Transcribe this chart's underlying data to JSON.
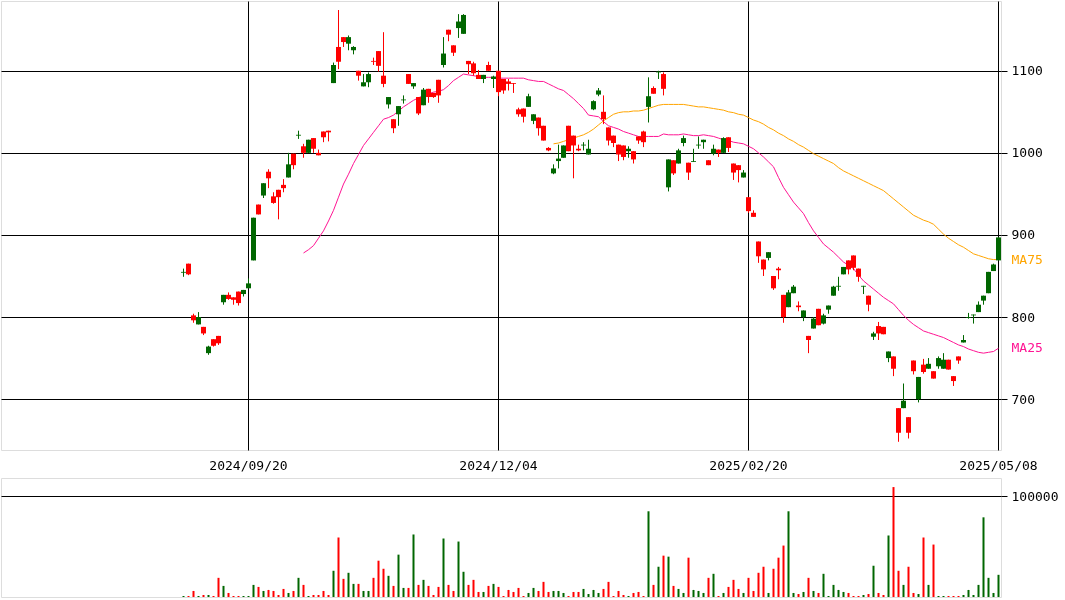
{
  "chart_data": [
    {
      "type": "candlestick",
      "categories": [
        null,
        null,
        null,
        null,
        null,
        null,
        null,
        null,
        null,
        null,
        null,
        null,
        null,
        null,
        null,
        null,
        null,
        null,
        null,
        null,
        null,
        null,
        null,
        null,
        null,
        null,
        null,
        null,
        null,
        null,
        null,
        null,
        null,
        null,
        null,
        null,
        null,
        null,
        null,
        null,
        null,
        null,
        null,
        null,
        null,
        null,
        null,
        null,
        null,
        "2024/09/20",
        null,
        null,
        null,
        null,
        null,
        null,
        null,
        null,
        null,
        null,
        null,
        null,
        null,
        null,
        null,
        null,
        null,
        null,
        null,
        null,
        null,
        null,
        null,
        null,
        null,
        null,
        null,
        null,
        null,
        null,
        null,
        null,
        null,
        null,
        null,
        null,
        null,
        null,
        null,
        null,
        null,
        null,
        null,
        null,
        null,
        null,
        null,
        null,
        null,
        "2024/12/04",
        null,
        null,
        null,
        null,
        null,
        null,
        null,
        null,
        null,
        null,
        null,
        null,
        null,
        null,
        null,
        null,
        null,
        null,
        null,
        null,
        null,
        null,
        null,
        null,
        null,
        null,
        null,
        null,
        null,
        null,
        null,
        null,
        null,
        null,
        null,
        null,
        null,
        null,
        null,
        null,
        null,
        null,
        null,
        null,
        null,
        null,
        null,
        null,
        null,
        "2025/02/20",
        null,
        null,
        null,
        null,
        null,
        null,
        null,
        null,
        null,
        null,
        null,
        null,
        null,
        null,
        null,
        null,
        null,
        null,
        null,
        null,
        null,
        null,
        null,
        null,
        null,
        null,
        null,
        null,
        null,
        null,
        null,
        null,
        null,
        null,
        null,
        null,
        null,
        null,
        null,
        null,
        null,
        null,
        null,
        null,
        null,
        null,
        null,
        null,
        null,
        "2025/05/08"
      ],
      "ohlc": [
        null,
        null,
        null,
        null,
        null,
        null,
        null,
        null,
        null,
        null,
        null,
        null,
        null,
        null,
        null,
        null,
        null,
        null,
        null,
        null,
        null,
        null,
        null,
        null,
        null,
        null,
        null,
        null,
        null,
        null,
        null,
        null,
        null,
        null,
        null,
        null,
        [
          854,
          859,
          849,
          855
        ],
        [
          865,
          865,
          851,
          852
        ],
        [
          802,
          804,
          793,
          796
        ],
        [
          791,
          806,
          791,
          800
        ],
        [
          788,
          788,
          778,
          780
        ],
        [
          756,
          765,
          754,
          764
        ],
        [
          773,
          773,
          764,
          765
        ],
        [
          777,
          777,
          766,
          768
        ],
        [
          818,
          827,
          815,
          827
        ],
        [
          827,
          830,
          821,
          822
        ],
        [
          824,
          824,
          815,
          821
        ],
        [
          831,
          831,
          814,
          817
        ],
        [
          828,
          833,
          825,
          833
        ],
        [
          835,
          847,
          835,
          841
        ],
        [
          869,
          921,
          869,
          921
        ],
        [
          937,
          937,
          925,
          925
        ],
        [
          948,
          963,
          945,
          963
        ],
        [
          977,
          980,
          957,
          969
        ],
        [
          947,
          952,
          938,
          939
        ],
        [
          955,
          955,
          919,
          946
        ],
        [
          961,
          968,
          952,
          957
        ],
        [
          970,
          1000,
          970,
          986
        ],
        [
          999,
          999,
          980,
          985
        ],
        [
          1021,
          1027,
          1017,
          1022
        ],
        [
          1008,
          1011,
          994,
          1000
        ],
        [
          1000,
          1016,
          1000,
          1016
        ],
        [
          1018,
          1018,
          1000,
          1005
        ],
        [
          1000,
          1004,
          997,
          997
        ],
        [
          1026,
          1026,
          1013,
          1019
        ],
        [
          1027,
          1027,
          1014,
          1025
        ],
        [
          1085,
          1110,
          1085,
          1107
        ],
        [
          1129,
          1174,
          1102,
          1111
        ],
        [
          1141,
          1141,
          1129,
          1135
        ],
        [
          1133,
          1143,
          1125,
          1141
        ],
        [
          1125,
          1130,
          1120,
          1129
        ],
        [
          1100,
          1100,
          1088,
          1094
        ],
        [
          1081,
          1096,
          1081,
          1086
        ],
        [
          1086,
          1098,
          1080,
          1096
        ],
        [
          1112,
          1116,
          1107,
          1111
        ],
        [
          1124,
          1124,
          1099,
          1106
        ],
        [
          1094,
          1147,
          1080,
          1084
        ],
        [
          1059,
          1068,
          1054,
          1068
        ],
        [
          1041,
          1041,
          1024,
          1030
        ],
        [
          1047,
          1057,
          1033,
          1057
        ],
        [
          1064,
          1070,
          1060,
          1065
        ],
        [
          1096,
          1096,
          1084,
          1084
        ],
        [
          1081,
          1085,
          1078,
          1085
        ],
        [
          1068,
          1068,
          1046,
          1048
        ],
        [
          1058,
          1079,
          1058,
          1077
        ],
        [
          1078,
          1078,
          1061,
          1068
        ],
        [
          1073,
          1073,
          1067,
          1068
        ],
        [
          1089,
          1089,
          1061,
          1070
        ],
        [
          1107,
          1141,
          1104,
          1121
        ],
        [
          1150,
          1150,
          1136,
          1144
        ],
        [
          1131,
          1131,
          1118,
          1122
        ],
        [
          1152,
          1169,
          1140,
          1160
        ],
        [
          1145,
          1169,
          1145,
          1168
        ],
        [
          1112,
          1112,
          1096,
          1108
        ],
        [
          1109,
          1111,
          1094,
          1097
        ],
        [
          1095,
          1101,
          1090,
          1090
        ],
        [
          1090,
          1095,
          1085,
          1095
        ],
        [
          1107,
          1111,
          1100,
          1100
        ],
        [
          1090,
          1094,
          1079,
          1093
        ],
        [
          1100,
          1100,
          1069,
          1074
        ],
        [
          1090,
          1090,
          1072,
          1076
        ],
        [
          1087,
          1090,
          1076,
          1084
        ],
        [
          1085,
          1085,
          1073,
          1084
        ],
        [
          1053,
          1055,
          1044,
          1047
        ],
        [
          1054,
          1054,
          1037,
          1044
        ],
        [
          1056,
          1072,
          1056,
          1069
        ],
        [
          1039,
          1047,
          1035,
          1047
        ],
        [
          1043,
          1043,
          1021,
          1030
        ],
        [
          1033,
          1033,
          1015,
          1015
        ],
        [
          1006,
          1007,
          1002,
          1003
        ],
        [
          975,
          986,
          974,
          981
        ],
        [
          990,
          1010,
          981,
          993
        ],
        [
          994,
          1009,
          994,
          1009
        ],
        [
          1033,
          1033,
          1002,
          1002
        ],
        [
          1021,
          1021,
          969,
          1009
        ],
        [
          1005,
          1010,
          1002,
          1003
        ],
        [
          1009,
          1013,
          1003,
          1010
        ],
        [
          998,
          1016,
          998,
          1005
        ],
        [
          1053,
          1064,
          1052,
          1063
        ],
        [
          1071,
          1079,
          1069,
          1076
        ],
        [
          1050,
          1070,
          1035,
          1041
        ],
        [
          1031,
          1031,
          1009,
          1015
        ],
        [
          1021,
          1021,
          1007,
          1012
        ],
        [
          1010,
          1010,
          990,
          998
        ],
        [
          1009,
          1009,
          991,
          995
        ],
        [
          1002,
          1008,
          994,
          1005
        ],
        [
          1002,
          1002,
          987,
          992
        ],
        [
          1020,
          1020,
          1011,
          1015
        ],
        [
          1026,
          1027,
          1007,
          1013
        ],
        [
          1056,
          1092,
          1037,
          1069
        ],
        [
          1079,
          1081,
          1072,
          1072
        ],
        [
          1098,
          1100,
          1090,
          1099
        ],
        [
          1096,
          1098,
          1070,
          1078
        ],
        [
          958,
          992,
          953,
          992
        ],
        [
          991,
          991,
          973,
          975
        ],
        [
          987,
          1005,
          987,
          1003
        ],
        [
          1012,
          1021,
          1008,
          1018
        ],
        [
          988,
          988,
          967,
          976
        ],
        [
          989,
          1005,
          989,
          990
        ],
        [
          1009,
          1020,
          1005,
          1010
        ],
        [
          1013,
          1016,
          1005,
          1016
        ],
        [
          991,
          991,
          985,
          985
        ],
        [
          999,
          1010,
          997,
          1005
        ],
        [
          1004,
          1004,
          995,
          1000
        ],
        [
          1000,
          1019,
          1000,
          1018
        ],
        [
          1019,
          1019,
          1001,
          1006
        ],
        [
          987,
          987,
          967,
          976
        ],
        [
          985,
          985,
          964,
          979
        ],
        [
          970,
          979,
          970,
          976
        ],
        [
          946,
          946,
          927,
          929
        ],
        [
          927,
          930,
          922,
          922
        ],
        [
          892,
          892,
          866,
          874
        ],
        [
          870,
          870,
          850,
          858
        ],
        [
          872,
          879,
          869,
          879
        ],
        [
          850,
          850,
          833,
          835
        ],
        [
          859,
          861,
          846,
          857
        ],
        [
          827,
          827,
          793,
          800
        ],
        [
          812,
          833,
          812,
          830
        ],
        [
          829,
          839,
          829,
          837
        ],
        [
          814,
          819,
          807,
          812
        ],
        [
          800,
          808,
          795,
          808
        ],
        [
          777,
          777,
          756,
          772
        ],
        [
          786,
          800,
          786,
          798
        ],
        [
          810,
          810,
          790,
          790
        ],
        [
          792,
          804,
          791,
          802
        ],
        [
          809,
          814,
          804,
          814
        ],
        [
          826,
          838,
          826,
          837
        ],
        [
          837,
          849,
          832,
          838
        ],
        [
          852,
          861,
          852,
          861
        ],
        [
          869,
          869,
          852,
          858
        ],
        [
          875,
          875,
          857,
          860
        ],
        [
          859,
          859,
          843,
          849
        ],
        [
          837,
          838,
          828,
          838
        ],
        [
          826,
          826,
          807,
          815
        ],
        [
          776,
          782,
          772,
          780
        ],
        [
          789,
          794,
          772,
          780
        ],
        [
          788,
          788,
          779,
          779
        ],
        [
          750,
          758,
          745,
          758
        ],
        [
          752,
          752,
          728,
          737
        ],
        [
          689,
          689,
          648,
          659
        ],
        [
          689,
          719,
          689,
          698
        ],
        [
          678,
          678,
          652,
          659
        ],
        [
          747,
          747,
          730,
          734
        ],
        [
          700,
          727,
          696,
          727
        ],
        [
          742,
          749,
          731,
          733
        ],
        [
          737,
          750,
          737,
          743
        ],
        [
          734,
          734,
          725,
          725
        ],
        [
          740,
          752,
          737,
          750
        ],
        [
          737,
          756,
          737,
          748
        ],
        [
          748,
          748,
          736,
          736
        ],
        [
          728,
          728,
          716,
          722
        ],
        [
          752,
          752,
          743,
          747
        ],
        [
          769,
          778,
          769,
          772
        ],
        [
          799,
          805,
          798,
          800
        ],
        [
          802,
          803,
          792,
          803
        ],
        [
          806,
          819,
          806,
          815
        ],
        [
          820,
          826,
          815,
          826
        ],
        [
          829,
          855,
          829,
          855
        ],
        [
          856,
          865,
          856,
          864
        ],
        [
          869,
          897,
          869,
          897
        ]
      ],
      "colors": [
        null,
        null,
        null,
        null,
        null,
        null,
        null,
        null,
        null,
        null,
        null,
        null,
        null,
        null,
        null,
        null,
        null,
        null,
        null,
        null,
        null,
        null,
        null,
        null,
        null,
        null,
        null,
        null,
        null,
        null,
        null,
        null,
        null,
        null,
        null,
        null,
        "#006600",
        "#ff0000",
        "#ff0000",
        "#006600",
        "#ff0000",
        "#006600",
        "#ff0000",
        "#ff0000",
        "#006600",
        "#ff0000",
        "#ff0000",
        "#ff0000",
        "#006600",
        "#006600",
        "#006600",
        "#ff0000",
        "#006600",
        "#ff0000",
        "#ff0000",
        "#ff0000",
        "#ff0000",
        "#006600",
        "#ff0000",
        "#006600",
        "#ff0000",
        "#006600",
        "#ff0000",
        "#ff0000",
        "#ff0000",
        "#ff0000",
        "#006600",
        "#ff0000",
        "#ff0000",
        "#006600",
        "#006600",
        "#ff0000",
        "#006600",
        "#006600",
        "#ff0000",
        "#ff0000",
        "#ff0000",
        "#006600",
        "#ff0000",
        "#006600",
        "#006600",
        "#ff0000",
        "#006600",
        "#ff0000",
        "#006600",
        "#ff0000",
        "#ff0000",
        "#ff0000",
        "#006600",
        "#ff0000",
        "#ff0000",
        "#006600",
        "#006600",
        "#ff0000",
        "#ff0000",
        "#ff0000",
        "#006600",
        "#ff0000",
        "#006600",
        "#ff0000",
        "#ff0000",
        "#ff0000",
        "#ff0000",
        "#ff0000",
        "#ff0000",
        "#006600",
        "#006600",
        "#ff0000",
        "#ff0000",
        "#ff0000",
        "#006600",
        "#006600",
        "#006600",
        "#ff0000",
        "#ff0000",
        "#ff0000",
        "#006600",
        "#006600",
        "#006600",
        "#006600",
        "#ff0000",
        "#ff0000",
        "#ff0000",
        "#ff0000",
        "#ff0000",
        "#006600",
        "#ff0000",
        "#ff0000",
        "#ff0000",
        "#006600",
        "#ff0000",
        "#006600",
        "#ff0000",
        "#006600",
        "#ff0000",
        "#006600",
        "#006600",
        "#ff0000",
        "#006600",
        "#006600",
        "#006600",
        "#ff0000",
        "#006600",
        "#ff0000",
        "#006600",
        "#ff0000",
        "#ff0000",
        "#ff0000",
        "#006600",
        "#ff0000",
        "#ff0000",
        "#ff0000",
        "#ff0000",
        "#006600",
        "#ff0000",
        "#ff0000",
        "#ff0000",
        "#006600",
        "#006600",
        "#ff0000",
        "#006600",
        "#ff0000",
        "#006600",
        "#ff0000",
        "#006600",
        "#006600",
        "#006600",
        "#006600",
        "#006600",
        "#ff0000",
        "#ff0000",
        "#ff0000",
        "#006600",
        "#ff0000",
        "#006600",
        "#ff0000",
        "#ff0000",
        "#006600",
        "#ff0000",
        "#ff0000",
        "#006600",
        "#ff0000",
        "#ff0000",
        "#006600",
        "#ff0000",
        "#006600",
        "#ff0000",
        "#006600",
        "#006600",
        "#ff0000",
        "#ff0000",
        "#ff0000",
        "#006600",
        "#006600",
        "#006600",
        "#006600",
        "#006600",
        "#006600",
        "#006600",
        "#006600"
      ],
      "series": [
        {
          "name": "MA25",
          "type": "line",
          "color": "#ff1493",
          "values": [
            null,
            null,
            null,
            null,
            null,
            null,
            null,
            null,
            null,
            null,
            null,
            null,
            null,
            null,
            null,
            null,
            null,
            null,
            null,
            null,
            null,
            null,
            null,
            null,
            null,
            null,
            null,
            null,
            null,
            null,
            null,
            null,
            null,
            null,
            null,
            null,
            null,
            null,
            null,
            null,
            null,
            null,
            null,
            null,
            null,
            null,
            null,
            null,
            null,
            null,
            null,
            null,
            null,
            null,
            null,
            null,
            null,
            null,
            null,
            null,
            878,
            882,
            887,
            896,
            905,
            917,
            930,
            946,
            962,
            974,
            987,
            998,
            1009,
            1017,
            1025,
            1033,
            1041,
            1043,
            1046,
            1051,
            1056,
            1060,
            1064,
            1067,
            1070,
            1072,
            1074,
            1075,
            1077,
            1082,
            1088,
            1092,
            1096,
            1095,
            1094,
            1093,
            1092,
            1092,
            1092,
            1091,
            1091,
            1091,
            1091,
            1091,
            1091,
            1089,
            1088,
            1087,
            1087,
            1084,
            1081,
            1078,
            1076,
            1071,
            1066,
            1060,
            1054,
            1046,
            1045,
            1044,
            1038,
            1033,
            1031,
            1029,
            1026,
            1024,
            1022,
            1020,
            1020,
            1020,
            1020,
            1020,
            1023,
            1022,
            1022,
            1022,
            1023,
            1022,
            1021,
            1021,
            1022,
            1021,
            1020,
            1018,
            1016,
            1015,
            1013,
            1012,
            1011,
            1008,
            1005,
            1000,
            995,
            989,
            983,
            970,
            958,
            949,
            940,
            933,
            926,
            915,
            905,
            897,
            889,
            884,
            879,
            873,
            867,
            863,
            859,
            851,
            844,
            839,
            834,
            829,
            824,
            820,
            816,
            809,
            802,
            796,
            791,
            787,
            783,
            781,
            779,
            777,
            775,
            772,
            769,
            766,
            764,
            761,
            759,
            757,
            756,
            757,
            758,
            762
          ]
        },
        {
          "name": "MA75",
          "type": "line",
          "color": "#ffa500",
          "values": [
            null,
            null,
            null,
            null,
            null,
            null,
            null,
            null,
            null,
            null,
            null,
            null,
            null,
            null,
            null,
            null,
            null,
            null,
            null,
            null,
            null,
            null,
            null,
            null,
            null,
            null,
            null,
            null,
            null,
            null,
            null,
            null,
            null,
            null,
            null,
            null,
            null,
            null,
            null,
            null,
            null,
            null,
            null,
            null,
            null,
            null,
            null,
            null,
            null,
            null,
            null,
            null,
            null,
            null,
            null,
            null,
            null,
            null,
            null,
            null,
            null,
            null,
            null,
            null,
            null,
            null,
            null,
            null,
            null,
            null,
            null,
            null,
            null,
            null,
            null,
            null,
            null,
            null,
            null,
            null,
            null,
            null,
            null,
            null,
            null,
            null,
            null,
            null,
            null,
            null,
            null,
            null,
            null,
            null,
            null,
            null,
            null,
            null,
            null,
            null,
            null,
            null,
            null,
            null,
            null,
            null,
            null,
            null,
            null,
            null,
            1011,
            1012,
            1014,
            1016,
            1018,
            1020,
            1022,
            1025,
            1029,
            1034,
            1039,
            1043,
            1047,
            1049,
            1050,
            1050,
            1051,
            1051,
            1052,
            1054,
            1056,
            1058,
            1059,
            1059,
            1059,
            1059,
            1059,
            1058,
            1057,
            1056,
            1056,
            1055,
            1054,
            1053,
            1052,
            1050,
            1049,
            1047,
            1046,
            1043,
            1040,
            1038,
            1035,
            1031,
            1028,
            1024,
            1021,
            1017,
            1014,
            1010,
            1007,
            1003,
            999,
            996,
            993,
            990,
            987,
            982,
            978,
            975,
            972,
            969,
            966,
            963,
            960,
            957,
            954,
            949,
            944,
            939,
            934,
            929,
            924,
            921,
            918,
            916,
            913,
            907,
            901,
            896,
            892,
            888,
            885,
            881,
            877,
            875,
            873,
            871,
            870,
            870
          ]
        }
      ],
      "ylim": [
        638,
        1185
      ],
      "yticks": [
        700,
        800,
        900,
        1000,
        1100
      ],
      "grid": true
    },
    {
      "type": "bar",
      "categories": [
        null,
        null,
        null,
        null,
        null,
        null,
        null,
        null,
        null,
        null,
        null,
        null,
        null,
        null,
        null,
        null,
        null,
        null,
        null,
        null,
        null,
        null,
        null,
        null,
        null,
        null,
        null,
        null,
        null,
        null,
        null,
        null,
        null,
        null,
        null,
        null,
        null,
        null,
        null,
        null,
        null,
        null,
        null,
        null,
        null,
        null,
        null,
        null,
        null,
        "2024/09/20",
        null,
        null,
        null,
        null,
        null,
        null,
        null,
        null,
        null,
        null,
        null,
        null,
        null,
        null,
        null,
        null,
        null,
        null,
        null,
        null,
        null,
        null,
        null,
        null,
        null,
        null,
        null,
        null,
        null,
        null,
        null,
        null,
        null,
        null,
        null,
        null,
        null,
        null,
        null,
        null,
        null,
        null,
        null,
        null,
        null,
        null,
        null,
        null,
        null,
        "2024/12/04",
        null,
        null,
        null,
        null,
        null,
        null,
        null,
        null,
        null,
        null,
        null,
        null,
        null,
        null,
        null,
        null,
        null,
        null,
        null,
        null,
        null,
        null,
        null,
        null,
        null,
        null,
        null,
        null,
        null,
        null,
        null,
        null,
        null,
        null,
        null,
        null,
        null,
        null,
        null,
        null,
        null,
        null,
        null,
        null,
        null,
        null,
        null,
        null,
        null,
        "2025/02/20",
        null,
        null,
        null,
        null,
        null,
        null,
        null,
        null,
        null,
        null,
        null,
        null,
        null,
        null,
        null,
        null,
        null,
        null,
        null,
        null,
        null,
        null,
        null,
        null,
        null,
        null,
        null,
        null,
        null,
        null,
        null,
        null,
        null,
        null,
        null,
        null,
        null,
        null,
        null,
        null,
        null,
        null,
        null,
        null,
        null,
        null,
        null,
        null,
        null,
        "2025/05/08"
      ],
      "values": [
        null,
        null,
        null,
        null,
        null,
        null,
        null,
        null,
        null,
        null,
        null,
        null,
        null,
        null,
        null,
        null,
        null,
        null,
        null,
        null,
        null,
        null,
        null,
        null,
        null,
        null,
        null,
        null,
        null,
        null,
        null,
        null,
        null,
        null,
        null,
        null,
        1000,
        1000,
        6000,
        1000,
        2000,
        2000,
        1000,
        19000,
        11000,
        4000,
        1000,
        1000,
        1000,
        1000,
        12000,
        10000,
        6000,
        7000,
        6000,
        2000,
        8000,
        4000,
        6000,
        19000,
        12000,
        1000,
        2000,
        2000,
        6000,
        2000,
        26000,
        59000,
        18000,
        24000,
        13000,
        13000,
        6000,
        6000,
        19000,
        36000,
        28000,
        21000,
        11000,
        42000,
        9000,
        9000,
        62000,
        12000,
        17000,
        11000,
        2000,
        10000,
        58000,
        12000,
        6000,
        55000,
        25000,
        12000,
        17000,
        5000,
        5000,
        11000,
        13000,
        10000,
        1000,
        7000,
        5000,
        9000,
        1000,
        4000,
        9000,
        6000,
        15000,
        5000,
        6000,
        6000,
        4000,
        1000,
        5000,
        5000,
        8000,
        3000,
        7000,
        4000,
        8000,
        15000,
        1000,
        6000,
        2000,
        1000,
        4000,
        5000,
        1000,
        85000,
        12000,
        30000,
        41000,
        40000,
        11000,
        8000,
        4000,
        39000,
        7000,
        6000,
        4000,
        19000,
        23000,
        1000,
        4000,
        10000,
        17000,
        8000,
        4000,
        19000,
        6000,
        24000,
        30000,
        4000,
        28000,
        39000,
        51000,
        85000,
        4000,
        3000,
        5000,
        19000,
        6000,
        4000,
        23000,
        1000,
        12000,
        7000,
        5000,
        4000,
        1000,
        1000,
        2000,
        3000,
        31000,
        4000,
        2000,
        61000,
        109000,
        26000,
        12000,
        30000,
        4000,
        3000,
        59000,
        12000,
        52000,
        1000,
        1000,
        1000,
        1000,
        1000,
        2000,
        7000,
        2000,
        12000,
        79000,
        19000,
        4000,
        22000
      ],
      "colors": [
        null,
        null,
        null,
        null,
        null,
        null,
        null,
        null,
        null,
        null,
        null,
        null,
        null,
        null,
        null,
        null,
        null,
        null,
        null,
        null,
        null,
        null,
        null,
        null,
        null,
        null,
        null,
        null,
        null,
        null,
        null,
        null,
        null,
        null,
        null,
        null,
        "#006600",
        "#ff0000",
        "#ff0000",
        "#006600",
        "#ff0000",
        "#006600",
        "#ff0000",
        "#ff0000",
        "#006600",
        "#ff0000",
        "#ff0000",
        "#ff0000",
        "#006600",
        "#006600",
        "#006600",
        "#ff0000",
        "#006600",
        "#ff0000",
        "#ff0000",
        "#ff0000",
        "#ff0000",
        "#006600",
        "#ff0000",
        "#006600",
        "#ff0000",
        "#006600",
        "#ff0000",
        "#ff0000",
        "#ff0000",
        "#ff0000",
        "#006600",
        "#ff0000",
        "#ff0000",
        "#006600",
        "#006600",
        "#ff0000",
        "#006600",
        "#006600",
        "#ff0000",
        "#ff0000",
        "#ff0000",
        "#006600",
        "#ff0000",
        "#006600",
        "#006600",
        "#ff0000",
        "#006600",
        "#ff0000",
        "#006600",
        "#ff0000",
        "#ff0000",
        "#ff0000",
        "#006600",
        "#ff0000",
        "#ff0000",
        "#006600",
        "#006600",
        "#ff0000",
        "#ff0000",
        "#ff0000",
        "#006600",
        "#ff0000",
        "#006600",
        "#ff0000",
        "#ff0000",
        "#ff0000",
        "#ff0000",
        "#ff0000",
        "#ff0000",
        "#006600",
        "#006600",
        "#ff0000",
        "#ff0000",
        "#ff0000",
        "#006600",
        "#006600",
        "#006600",
        "#ff0000",
        "#ff0000",
        "#ff0000",
        "#006600",
        "#006600",
        "#006600",
        "#006600",
        "#ff0000",
        "#ff0000",
        "#ff0000",
        "#ff0000",
        "#ff0000",
        "#006600",
        "#ff0000",
        "#ff0000",
        "#ff0000",
        "#006600",
        "#ff0000",
        "#006600",
        "#ff0000",
        "#006600",
        "#ff0000",
        "#006600",
        "#006600",
        "#ff0000",
        "#006600",
        "#006600",
        "#006600",
        "#ff0000",
        "#006600",
        "#ff0000",
        "#006600",
        "#ff0000",
        "#ff0000",
        "#ff0000",
        "#006600",
        "#ff0000",
        "#ff0000",
        "#ff0000",
        "#ff0000",
        "#006600",
        "#ff0000",
        "#ff0000",
        "#ff0000",
        "#006600",
        "#006600",
        "#ff0000",
        "#006600",
        "#ff0000",
        "#006600",
        "#ff0000",
        "#006600",
        "#006600",
        "#006600",
        "#006600",
        "#006600",
        "#ff0000",
        "#ff0000",
        "#ff0000",
        "#006600",
        "#ff0000",
        "#006600",
        "#ff0000",
        "#ff0000",
        "#006600",
        "#ff0000",
        "#ff0000",
        "#006600",
        "#ff0000",
        "#ff0000",
        "#006600",
        "#ff0000",
        "#006600",
        "#ff0000",
        "#006600",
        "#006600",
        "#ff0000",
        "#ff0000",
        "#ff0000",
        "#006600",
        "#006600",
        "#006600",
        "#006600",
        "#006600",
        "#006600",
        "#006600",
        "#006600"
      ],
      "ylim": [
        0,
        118000
      ],
      "yticks": [
        100000
      ],
      "grid": "y",
      "tick_labels": "y"
    }
  ]
}
